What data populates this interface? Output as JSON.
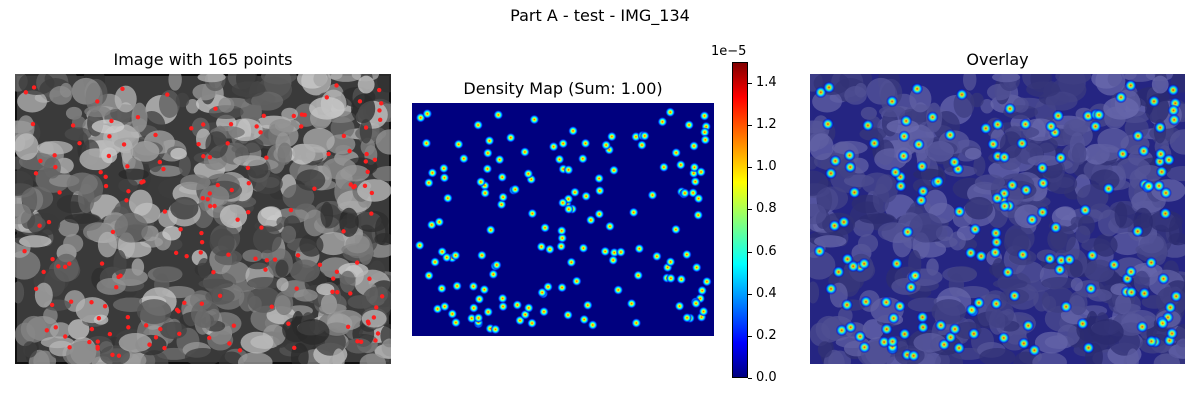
{
  "figure": {
    "title": "Part A - test - IMG_134"
  },
  "panels": {
    "image": {
      "title": "Image with 165 points"
    },
    "density": {
      "title": "Density Map (Sum: 1.00)"
    },
    "overlay": {
      "title": "Overlay"
    }
  },
  "colorbar": {
    "exponent_label": "1e−5",
    "range": [
      0.0,
      1.5
    ],
    "ticks": [
      "0.0",
      "0.2",
      "0.4",
      "0.6",
      "0.8",
      "1.0",
      "1.2",
      "1.4"
    ],
    "colormap": "jet"
  },
  "colors": {
    "point_marker": "#ff2020",
    "density_background": "#00007f",
    "overlay_tint": "#2b2b9a"
  },
  "chart_data": {
    "type": "heatmap",
    "point_count": 165,
    "density_sum": 1.0
  }
}
